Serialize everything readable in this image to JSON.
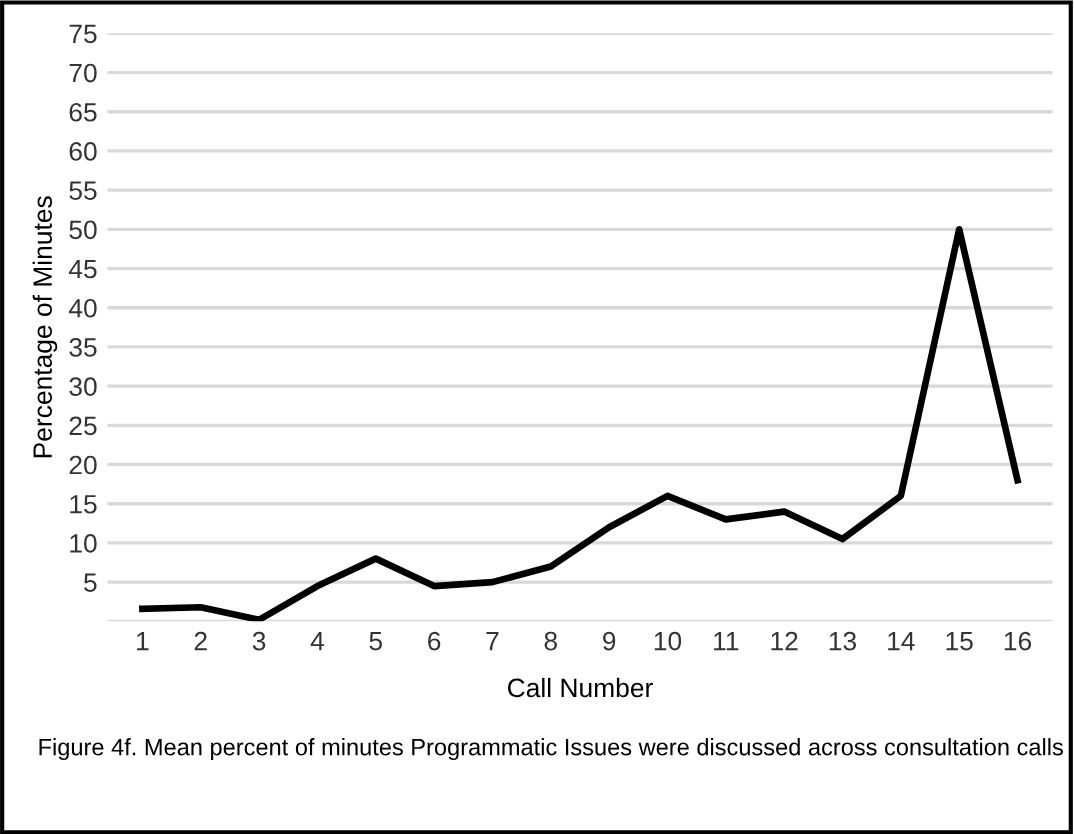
{
  "chart_data": {
    "type": "line",
    "xlabel": "Call Number",
    "ylabel": "Percentage of Minutes",
    "categories": [
      "1",
      "2",
      "3",
      "4",
      "5",
      "6",
      "7",
      "8",
      "9",
      "10",
      "11",
      "12",
      "13",
      "14",
      "15",
      "16"
    ],
    "series": [
      {
        "color": "#000000",
        "values": [
          1.6,
          1.8,
          0.2,
          4.5,
          8,
          4.5,
          5,
          7,
          12,
          16,
          13,
          14,
          10.5,
          16,
          50,
          18
        ]
      }
    ],
    "ylim": [
      0,
      75
    ],
    "yticks": [
      {
        "value": 0,
        "label": null
      },
      5,
      10,
      15,
      20,
      25,
      30,
      35,
      40,
      45,
      50,
      55,
      60,
      65,
      70,
      75
    ],
    "grid": "y",
    "marker": "none",
    "line_style": "solid",
    "annotations": [
      "Figure 4f. Mean percent of minutes Programmatic Issues were discussed across consultation calls"
    ]
  }
}
